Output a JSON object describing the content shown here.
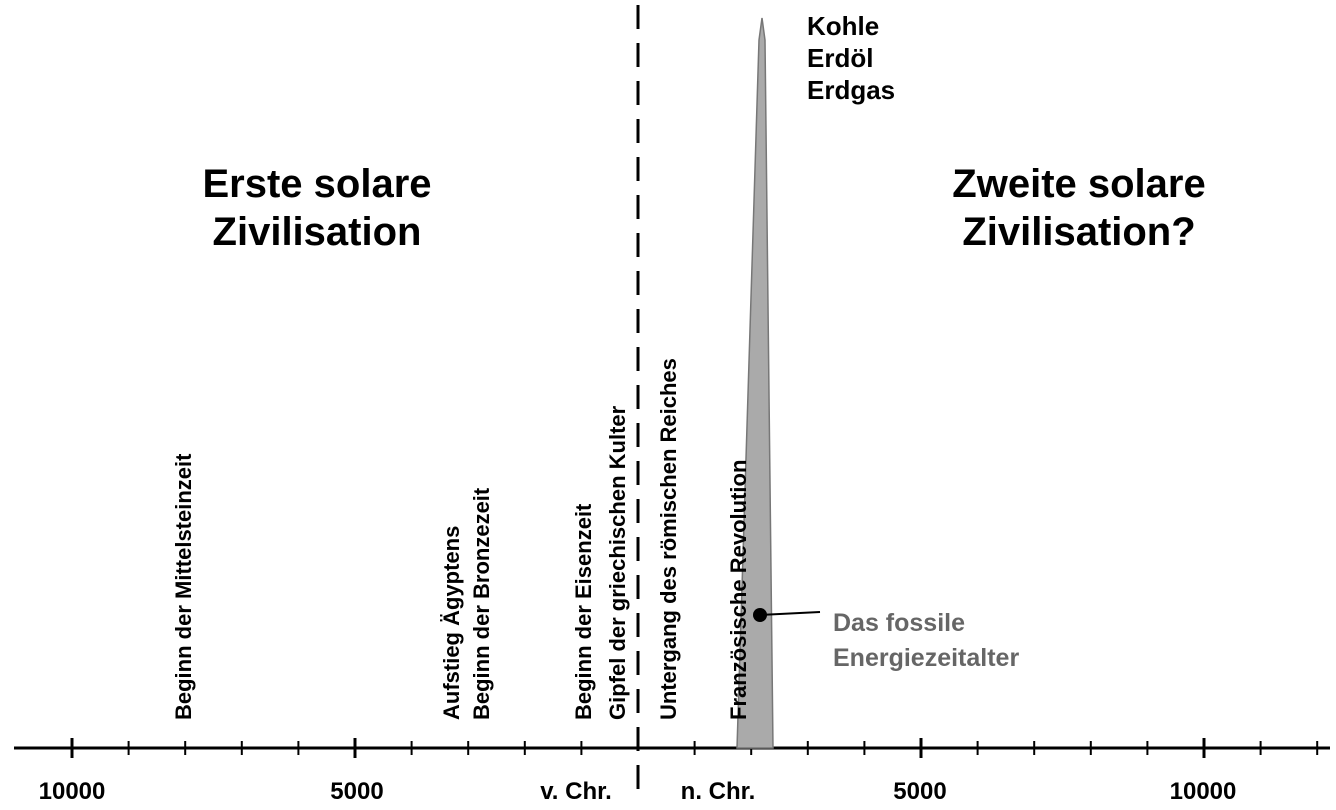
{
  "left_title": [
    "Erste solare",
    "Zivilisation"
  ],
  "right_title": [
    "Zweite solare",
    "Zivilisation?"
  ],
  "fuels": [
    "Kohle",
    "Erdöl",
    "Erdgas"
  ],
  "events": [
    "Beginn der Mittelsteinzeit",
    "Aufstieg Ägyptens",
    "Beginn der Bronzezeit",
    "Beginn der Eisenzeit",
    "Gipfel der griechischen Kulter",
    "Untergang des römischen Reiches",
    "Französische Revolution"
  ],
  "fossil_label": [
    "Das fossile",
    "Energiezeitalter"
  ],
  "axis_labels": [
    "10000",
    "5000",
    "v. Chr.",
    "n. Chr.",
    "5000",
    "10000"
  ]
}
